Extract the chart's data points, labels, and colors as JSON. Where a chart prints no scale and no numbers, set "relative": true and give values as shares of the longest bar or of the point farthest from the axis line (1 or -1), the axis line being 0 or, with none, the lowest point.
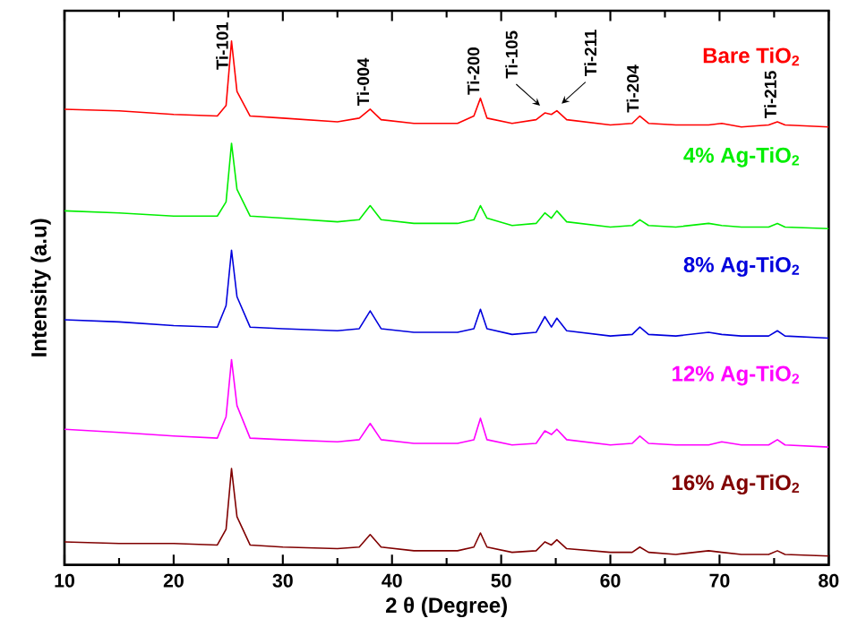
{
  "chart_data": {
    "type": "line",
    "relative": true,
    "xlabel": "2 θ (Degree)",
    "ylabel": "Intensity (a.u)",
    "xlim": [
      10,
      80
    ],
    "xticks": [
      10,
      20,
      30,
      40,
      50,
      60,
      70,
      80
    ],
    "legend": false,
    "grid": false,
    "marker": "none",
    "line_style": "solid",
    "x": [
      10,
      15,
      20,
      24,
      24.8,
      25.3,
      25.8,
      27,
      30,
      35,
      37,
      38,
      39,
      42,
      46,
      47.5,
      48.1,
      48.7,
      51,
      53.2,
      54,
      54.6,
      55.1,
      56,
      60,
      62,
      62.7,
      63.5,
      66,
      69,
      70.2,
      72,
      74.5,
      75.3,
      76,
      80
    ],
    "series": [
      {
        "name": "Bare TiO$_{2}$",
        "color": "#ff0000",
        "values": [
          0.87,
          0.867,
          0.86,
          0.857,
          0.877,
          1,
          0.904,
          0.857,
          0.853,
          0.846,
          0.853,
          0.87,
          0.85,
          0.843,
          0.843,
          0.857,
          0.891,
          0.853,
          0.843,
          0.85,
          0.863,
          0.86,
          0.867,
          0.85,
          0.84,
          0.843,
          0.857,
          0.843,
          0.84,
          0.84,
          0.843,
          0.836,
          0.84,
          0.846,
          0.84,
          0.836
        ]
      },
      {
        "name": "4% Ag-TiO$_{2}$",
        "color": "#00ee00",
        "values": [
          0.676,
          0.672,
          0.666,
          0.666,
          0.693,
          0.805,
          0.717,
          0.666,
          0.662,
          0.655,
          0.659,
          0.686,
          0.659,
          0.652,
          0.652,
          0.659,
          0.686,
          0.662,
          0.648,
          0.652,
          0.672,
          0.662,
          0.676,
          0.655,
          0.645,
          0.648,
          0.659,
          0.648,
          0.645,
          0.652,
          0.648,
          0.645,
          0.645,
          0.652,
          0.645,
          0.642
        ]
      },
      {
        "name": "8% Ag-TiO$_{2}$",
        "color": "#0000dd",
        "values": [
          0.468,
          0.464,
          0.457,
          0.454,
          0.495,
          0.601,
          0.512,
          0.454,
          0.451,
          0.447,
          0.451,
          0.485,
          0.451,
          0.444,
          0.444,
          0.451,
          0.488,
          0.451,
          0.44,
          0.444,
          0.474,
          0.454,
          0.471,
          0.447,
          0.437,
          0.44,
          0.454,
          0.44,
          0.437,
          0.444,
          0.44,
          0.437,
          0.437,
          0.447,
          0.437,
          0.433
        ]
      },
      {
        "name": "12% Ag-TiO$_{2}$",
        "color": "#ff00ff",
        "values": [
          0.259,
          0.253,
          0.246,
          0.242,
          0.283,
          0.392,
          0.304,
          0.242,
          0.239,
          0.235,
          0.239,
          0.27,
          0.239,
          0.232,
          0.232,
          0.239,
          0.28,
          0.239,
          0.229,
          0.232,
          0.256,
          0.249,
          0.259,
          0.239,
          0.229,
          0.232,
          0.246,
          0.232,
          0.229,
          0.229,
          0.235,
          0.229,
          0.229,
          0.239,
          0.229,
          0.225
        ]
      },
      {
        "name": "16% Ag-TiO$_{2}$",
        "color": "#800000",
        "values": [
          0.044,
          0.041,
          0.041,
          0.038,
          0.068,
          0.184,
          0.092,
          0.038,
          0.034,
          0.031,
          0.034,
          0.058,
          0.034,
          0.027,
          0.027,
          0.034,
          0.061,
          0.034,
          0.024,
          0.027,
          0.044,
          0.038,
          0.048,
          0.031,
          0.024,
          0.024,
          0.034,
          0.024,
          0.02,
          0.027,
          0.024,
          0.02,
          0.02,
          0.027,
          0.02,
          0.017
        ]
      }
    ],
    "annotations": [
      {
        "text": "Ti-101",
        "x": 25.3,
        "y": 1
      },
      {
        "text": "Ti-004",
        "x": 38,
        "y": 0.87
      },
      {
        "text": "Ti-200",
        "x": 48.1,
        "y": 0.891
      },
      {
        "text": "Ti-105",
        "x": 54,
        "y": 0.863
      },
      {
        "text": "Ti-211",
        "x": 55.1,
        "y": 0.867
      },
      {
        "text": "Ti-204",
        "x": 62.7,
        "y": 0.857
      },
      {
        "text": "Ti-215",
        "x": 75.3,
        "y": 0.846
      }
    ]
  }
}
